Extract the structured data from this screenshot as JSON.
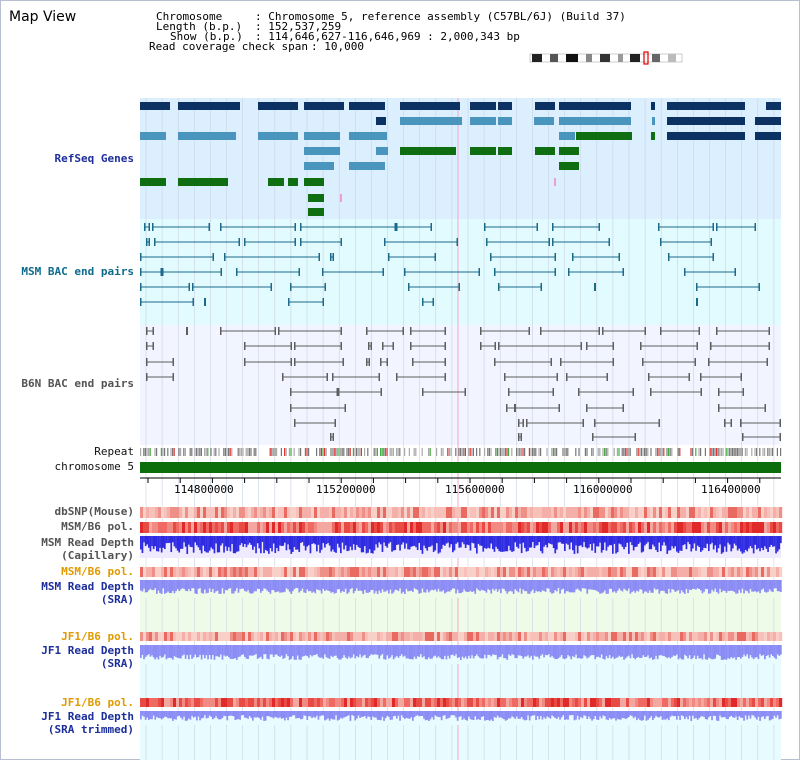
{
  "app": {
    "title": "Map View"
  },
  "info": {
    "chromosome_key": "Chromosome",
    "chromosome_val": ": Chromosome 5, reference assembly (C57BL/6J) (Build 37)",
    "length_key": "Length (b.p.)",
    "length_val": ": 152,537,259",
    "show_key": "Show (b.p.)",
    "show_val": ": 114,646,627-116,646,969 : 2,000,343 bp",
    "coverage_key": "Read coverage check span",
    "coverage_val": ": 10,000"
  },
  "tracks": {
    "refseq": "RefSeq Genes",
    "msm_bac": "MSM BAC end pairs",
    "b6n_bac": "B6N BAC end pairs",
    "repeat": "Repeat",
    "chromosome": "chromosome 5",
    "dbsnp": "dbSNP(Mouse)",
    "msm_b6_pol": "MSM/B6 pol.",
    "msm_depth_cap_1": "MSM Read Depth",
    "msm_depth_cap_2": "(Capillary)",
    "msm_b6_pol_2": "MSM/B6 pol.",
    "msm_depth_sra_1": "MSM Read Depth",
    "msm_depth_sra_2": "(SRA)",
    "jf1_b6_pol": "JF1/B6 pol.",
    "jf1_depth_sra_1": "JF1 Read Depth",
    "jf1_depth_sra_2": "(SRA)",
    "jf1_b6_pol_2": "JF1/B6 pol.",
    "jf1_depth_trim_1": "JF1 Read Depth",
    "jf1_depth_trim_2": "(SRA trimmed)"
  },
  "axis": {
    "ticks": [
      "114800000",
      "115200000",
      "115600000",
      "116000000",
      "116400000"
    ]
  },
  "colors": {
    "refseq_bg": "#dcefff",
    "msm_bac_bg": "#e2fbff",
    "b6n_bac_bg": "#f2f4ff",
    "gene_dark": "#0c3163",
    "gene_mid": "#4a95bd",
    "gene_green": "#106e12",
    "msm_line": "#1b6a8a",
    "b6n_line": "#5e5e5e",
    "chromosome_bar": "#0b6e0b",
    "depth_blue": "#2e2be0",
    "depth_light": "#8c8cf5",
    "pol_red": "#e23434"
  }
}
